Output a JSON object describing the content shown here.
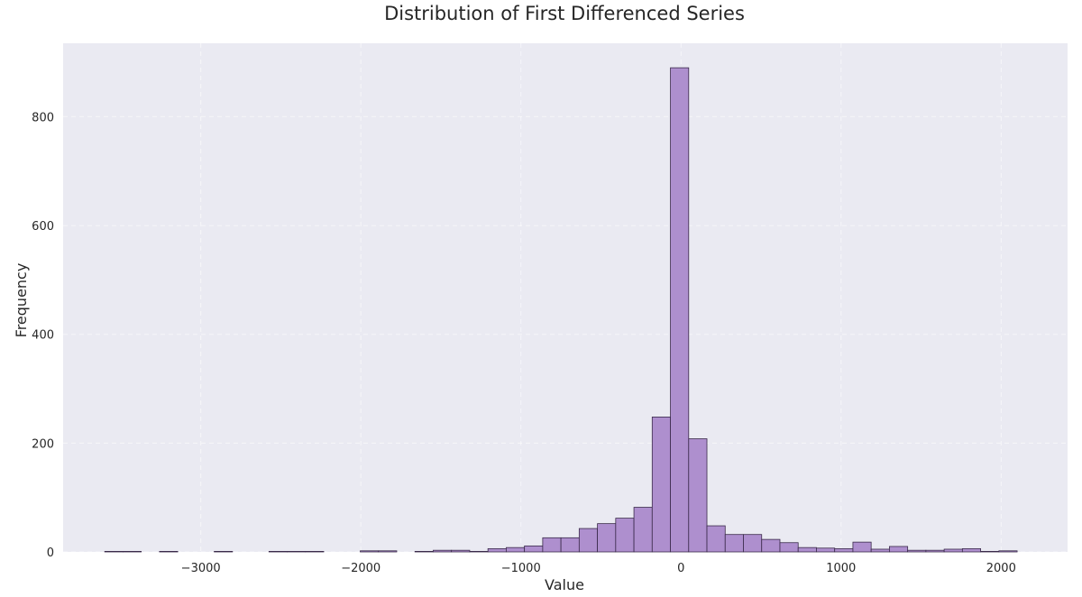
{
  "chart_data": {
    "type": "bar",
    "title": "Distribution of First Differenced Series",
    "xlabel": "Value",
    "ylabel": "Frequency",
    "xlim": [
      -3860,
      2415
    ],
    "ylim": [
      0,
      935
    ],
    "xticks": [
      -3000,
      -2000,
      -1000,
      0,
      1000,
      2000
    ],
    "xtick_labels": [
      "−3000",
      "−2000",
      "−1000",
      "0",
      "1000",
      "2000"
    ],
    "yticks": [
      0,
      200,
      400,
      600,
      800
    ],
    "ytick_labels": [
      "0",
      "200",
      "400",
      "600",
      "800"
    ],
    "grid": true,
    "bin_start": -3600,
    "bin_width": 114,
    "values": [
      1,
      1,
      0,
      1,
      0,
      0,
      1,
      0,
      0,
      1,
      1,
      1,
      0,
      0,
      2,
      2,
      0,
      1,
      3,
      3,
      1,
      6,
      8,
      11,
      26,
      26,
      43,
      52,
      62,
      82,
      248,
      890,
      208,
      48,
      32,
      32,
      23,
      17,
      8,
      7,
      6,
      18,
      5,
      10,
      3,
      3,
      5,
      6,
      1,
      2
    ],
    "colors": {
      "bar": "#ae8fce",
      "edge": "#3a2a4a",
      "plot_bg": "#eaeaf2"
    }
  }
}
